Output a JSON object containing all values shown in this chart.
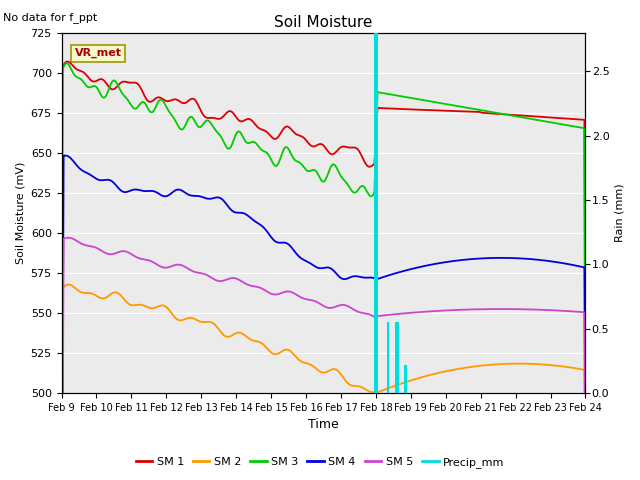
{
  "title": "Soil Moisture",
  "subtitle": "No data for f_ppt",
  "xlabel": "Time",
  "ylabel_left": "Soil Moisture (mV)",
  "ylabel_right": "Rain (mm)",
  "ylim_left": [
    500,
    725
  ],
  "ylim_right": [
    0.0,
    2.8
  ],
  "xtick_labels": [
    "Feb 9",
    "Feb 10",
    "Feb 11",
    "Feb 12",
    "Feb 13",
    "Feb 14",
    "Feb 15",
    "Feb 16",
    "Feb 17",
    "Feb 18",
    "Feb 19",
    "Feb 20",
    "Feb 21",
    "Feb 22",
    "Feb 23",
    "Feb 24"
  ],
  "vr_met_label": "VR_met",
  "background_color": "#ebebeb",
  "line_colors": {
    "SM1": "#dd0000",
    "SM2": "#ff9900",
    "SM3": "#00cc00",
    "SM4": "#0000dd",
    "SM5": "#cc44cc",
    "Precip": "#00dddd"
  }
}
